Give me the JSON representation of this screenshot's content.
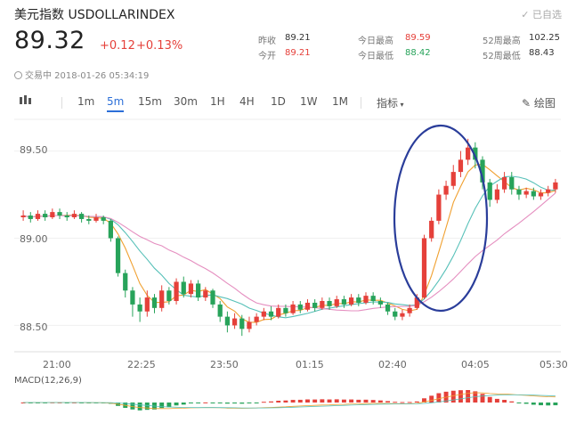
{
  "header": {
    "title": "美元指数 USDOLLARINDEX",
    "follow_label": "已自选"
  },
  "quote": {
    "price": "89.32",
    "change": "+0.12",
    "change_pct": "+0.13%",
    "status": "交易中 2018-01-26 05:34:19"
  },
  "stats": [
    {
      "label": "昨收",
      "value": "89.21",
      "color": "dark"
    },
    {
      "label": "今开",
      "value": "89.21",
      "color": "red"
    },
    {
      "label": "今日最高",
      "value": "89.59",
      "color": "red"
    },
    {
      "label": "今日最低",
      "value": "88.42",
      "color": "green"
    },
    {
      "label": "52周最高",
      "value": "102.25",
      "color": "dark"
    },
    {
      "label": "52周最低",
      "value": "88.43",
      "color": "dark"
    }
  ],
  "toolbar": {
    "periods": [
      "1m",
      "5m",
      "15m",
      "30m",
      "1H",
      "4H",
      "1D",
      "1W",
      "1M"
    ],
    "active": "5m",
    "indicator_label": "指标",
    "draw_label": "绘图"
  },
  "chart_data": {
    "type": "candlestick",
    "y_ticks": [
      "89.50",
      "89.00",
      "88.50"
    ],
    "x_ticks": [
      "21:00",
      "22:25",
      "23:50",
      "01:15",
      "02:40",
      "04:05",
      "05:30"
    ],
    "ylim": [
      88.4,
      89.6
    ],
    "macd_label": "MACD(12,26,9)",
    "colors": {
      "up": "#e5403a",
      "down": "#27a35a",
      "ma1": "#f0a030",
      "ma2": "#56c0b8",
      "ma3": "#e58fc0"
    },
    "candles": [
      [
        89.12,
        89.13,
        89.16,
        89.1
      ],
      [
        89.13,
        89.11,
        89.15,
        89.09
      ],
      [
        89.11,
        89.14,
        89.16,
        89.1
      ],
      [
        89.14,
        89.12,
        89.16,
        89.1
      ],
      [
        89.12,
        89.15,
        89.17,
        89.11
      ],
      [
        89.15,
        89.13,
        89.17,
        89.11
      ],
      [
        89.13,
        89.12,
        89.15,
        89.1
      ],
      [
        89.12,
        89.14,
        89.16,
        89.11
      ],
      [
        89.14,
        89.11,
        89.15,
        89.09
      ],
      [
        89.11,
        89.1,
        89.13,
        89.08
      ],
      [
        89.1,
        89.12,
        89.14,
        89.09
      ],
      [
        89.12,
        89.1,
        89.13,
        89.08
      ],
      [
        89.1,
        89.0,
        89.11,
        88.98
      ],
      [
        89.0,
        88.8,
        89.01,
        88.78
      ],
      [
        88.8,
        88.7,
        88.82,
        88.66
      ],
      [
        88.7,
        88.62,
        88.72,
        88.55
      ],
      [
        88.62,
        88.58,
        88.66,
        88.52
      ],
      [
        88.58,
        88.66,
        88.7,
        88.55
      ],
      [
        88.66,
        88.6,
        88.68,
        88.57
      ],
      [
        88.6,
        88.7,
        88.73,
        88.58
      ],
      [
        88.7,
        88.64,
        88.72,
        88.62
      ],
      [
        88.64,
        88.75,
        88.77,
        88.62
      ],
      [
        88.75,
        88.68,
        88.78,
        88.66
      ],
      [
        88.68,
        88.74,
        88.76,
        88.66
      ],
      [
        88.74,
        88.66,
        88.76,
        88.64
      ],
      [
        88.66,
        88.7,
        88.72,
        88.64
      ],
      [
        88.7,
        88.62,
        88.71,
        88.6
      ],
      [
        88.62,
        88.55,
        88.64,
        88.52
      ],
      [
        88.55,
        88.5,
        88.58,
        88.46
      ],
      [
        88.5,
        88.54,
        88.57,
        88.48
      ],
      [
        88.54,
        88.48,
        88.56,
        88.44
      ],
      [
        88.48,
        88.52,
        88.55,
        88.46
      ],
      [
        88.52,
        88.55,
        88.57,
        88.5
      ],
      [
        88.55,
        88.58,
        88.6,
        88.53
      ],
      [
        88.58,
        88.55,
        88.61,
        88.53
      ],
      [
        88.55,
        88.6,
        88.62,
        88.54
      ],
      [
        88.6,
        88.57,
        88.62,
        88.55
      ],
      [
        88.57,
        88.62,
        88.64,
        88.56
      ],
      [
        88.62,
        88.59,
        88.64,
        88.57
      ],
      [
        88.59,
        88.63,
        88.65,
        88.58
      ],
      [
        88.63,
        88.6,
        88.65,
        88.58
      ],
      [
        88.6,
        88.64,
        88.66,
        88.59
      ],
      [
        88.64,
        88.61,
        88.66,
        88.59
      ],
      [
        88.61,
        88.65,
        88.67,
        88.6
      ],
      [
        88.65,
        88.62,
        88.67,
        88.6
      ],
      [
        88.62,
        88.66,
        88.68,
        88.61
      ],
      [
        88.66,
        88.63,
        88.68,
        88.61
      ],
      [
        88.63,
        88.67,
        88.69,
        88.62
      ],
      [
        88.67,
        88.64,
        88.69,
        88.62
      ],
      [
        88.64,
        88.62,
        88.66,
        88.6
      ],
      [
        88.62,
        88.58,
        88.63,
        88.56
      ],
      [
        88.58,
        88.55,
        88.6,
        88.53
      ],
      [
        88.55,
        88.57,
        88.59,
        88.53
      ],
      [
        88.57,
        88.6,
        88.62,
        88.55
      ],
      [
        88.6,
        88.66,
        88.68,
        88.59
      ],
      [
        88.66,
        89.0,
        89.02,
        88.65
      ],
      [
        89.0,
        89.1,
        89.12,
        88.98
      ],
      [
        89.1,
        89.25,
        89.28,
        89.08
      ],
      [
        89.25,
        89.3,
        89.33,
        89.22
      ],
      [
        89.3,
        89.38,
        89.42,
        89.28
      ],
      [
        89.38,
        89.45,
        89.5,
        89.35
      ],
      [
        89.45,
        89.52,
        89.57,
        89.42
      ],
      [
        89.52,
        89.45,
        89.55,
        89.4
      ],
      [
        89.45,
        89.32,
        89.47,
        89.28
      ],
      [
        89.32,
        89.22,
        89.34,
        89.18
      ],
      [
        89.22,
        89.28,
        89.31,
        89.2
      ],
      [
        89.28,
        89.35,
        89.38,
        89.26
      ],
      [
        89.35,
        89.28,
        89.38,
        89.25
      ],
      [
        89.28,
        89.25,
        89.3,
        89.22
      ],
      [
        89.25,
        89.27,
        89.29,
        89.23
      ],
      [
        89.27,
        89.24,
        89.29,
        89.22
      ],
      [
        89.24,
        89.26,
        89.28,
        89.22
      ],
      [
        89.26,
        89.28,
        89.3,
        89.24
      ],
      [
        89.28,
        89.32,
        89.34,
        89.26
      ]
    ]
  }
}
